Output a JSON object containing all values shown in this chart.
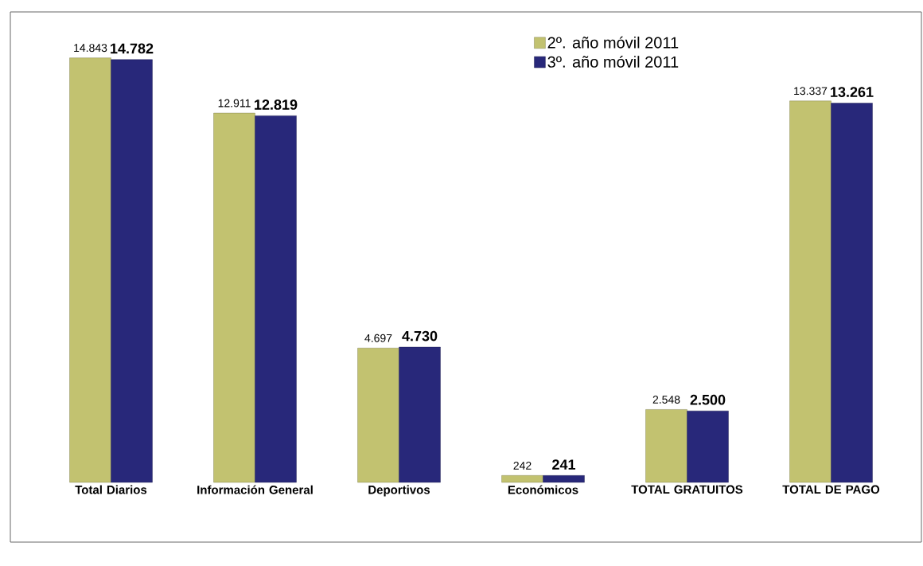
{
  "chart_data": {
    "type": "bar",
    "categories": [
      "Total Diarios",
      "Información General",
      "Deportivos",
      "Económicos",
      "TOTAL GRATUITOS",
      "TOTAL DE PAGO"
    ],
    "series": [
      {
        "name": "2º. año móvil 2011",
        "color": "#c2c270",
        "values": [
          14843,
          12911,
          4697,
          242,
          2548,
          13337
        ],
        "value_labels": [
          "14.843",
          "12.911",
          "4.697",
          "242",
          "2.548",
          "13.337"
        ]
      },
      {
        "name": "3º. año móvil 2011",
        "color": "#28287a",
        "values": [
          14782,
          12819,
          4730,
          241,
          2500,
          13261
        ],
        "value_labels": [
          "14.782",
          "12.819",
          "4.730",
          "241",
          "2.500",
          "13.261"
        ]
      }
    ],
    "legend": "top"
  }
}
